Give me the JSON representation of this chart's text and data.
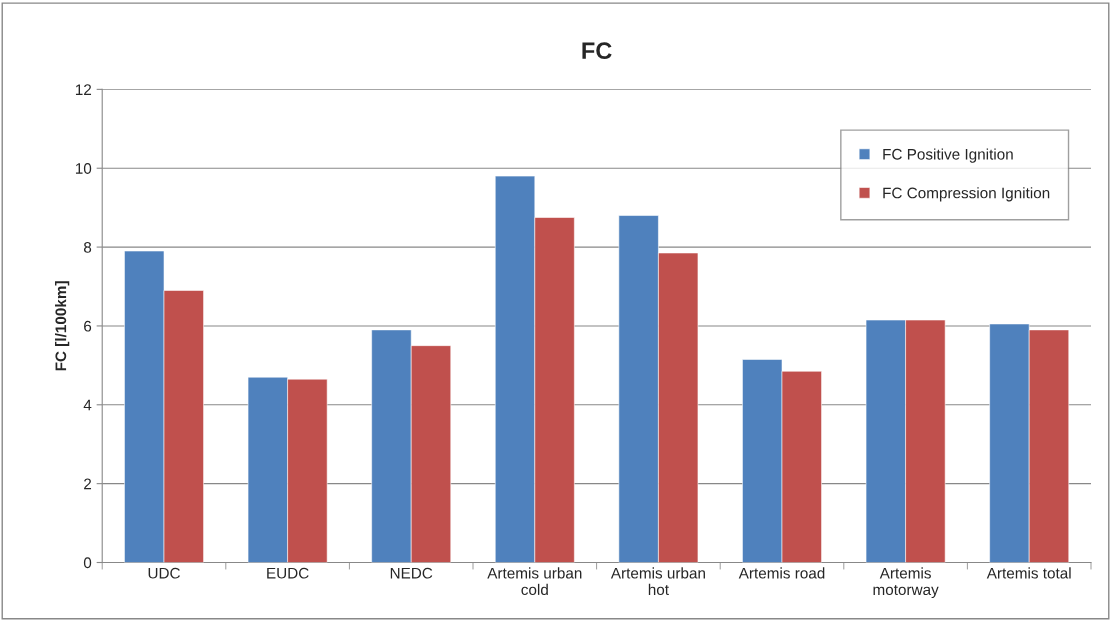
{
  "chart_data": {
    "type": "bar",
    "title": "FC",
    "ylabel": "FC [l/100km]",
    "categories": [
      "UDC",
      "EUDC",
      "NEDC",
      "Artemis urban\ncold",
      "Artemis urban\nhot",
      "Artemis road",
      "Artemis\nmotorway",
      "Artemis total"
    ],
    "series": [
      {
        "name": "FC Positive Ignition",
        "color": "#4f81bd",
        "values": [
          7.9,
          4.7,
          5.9,
          9.8,
          8.8,
          5.15,
          6.15,
          6.05
        ]
      },
      {
        "name": "FC Compression Ignition",
        "color": "#c0504d",
        "values": [
          6.9,
          4.65,
          5.5,
          8.75,
          7.85,
          4.85,
          6.15,
          5.9
        ]
      }
    ],
    "ylim": [
      0,
      12
    ],
    "yticks": [
      0,
      2,
      4,
      6,
      8,
      10,
      12
    ],
    "grid": "y",
    "legend": "top right"
  }
}
